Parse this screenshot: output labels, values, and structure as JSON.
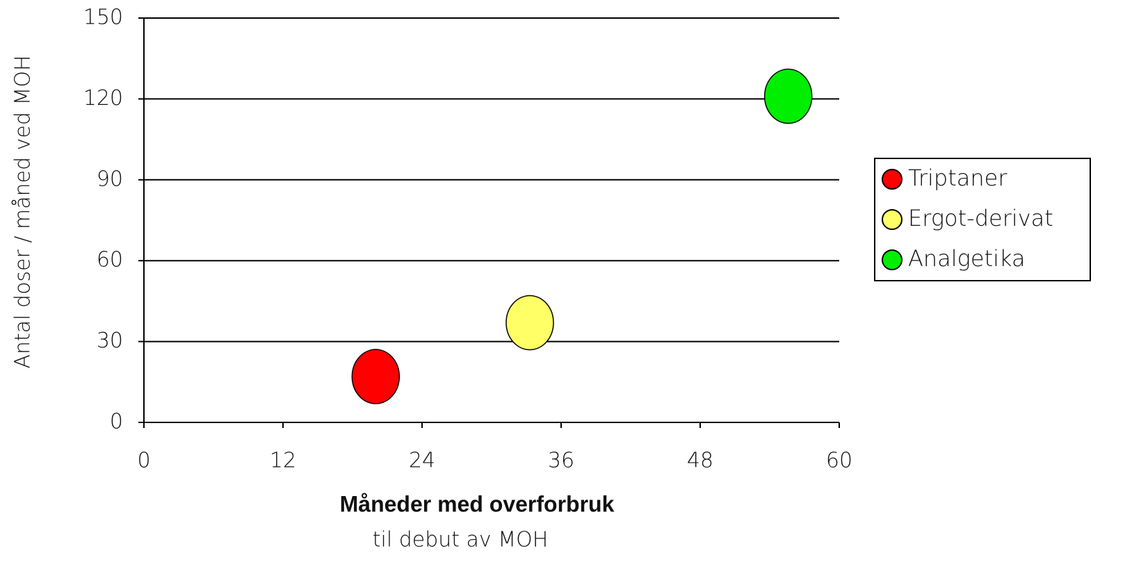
{
  "chart_data": {
    "type": "scatter",
    "x_label": "Måneder med overforbruk",
    "x_label_sub": "til debut av MOH",
    "y_label": "Antal doser / måned ved MOH",
    "series": [
      {
        "name": "Triptaner",
        "color": "#ff0000",
        "x": [
          20
        ],
        "values": [
          17
        ]
      },
      {
        "name": "Ergot-derivat",
        "color": "#ffff66",
        "x": [
          33.3
        ],
        "values": [
          37
        ]
      },
      {
        "name": "Analgetika",
        "color": "#00ee00",
        "x": [
          55.6
        ],
        "values": [
          121
        ]
      }
    ],
    "xlim": [
      0,
      60
    ],
    "xticks": [
      0,
      12,
      24,
      36,
      48,
      60
    ],
    "ylim": [
      0,
      150
    ],
    "yticks": [
      0,
      30,
      60,
      90,
      120,
      150
    ],
    "grid": true,
    "legend": "right"
  }
}
